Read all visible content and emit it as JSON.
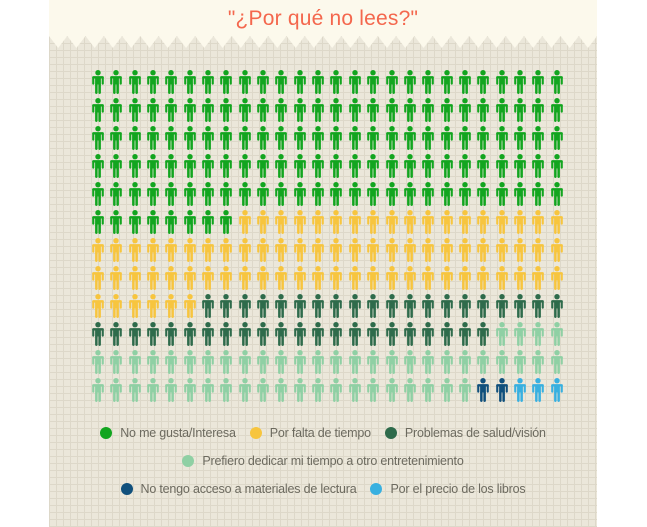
{
  "title": "\"¿Por qué no lees?\"",
  "colors": {
    "title": "#f4674d",
    "header_bg": "#fcf9ec",
    "paper_bg": "#ebe7da",
    "paper_line": "#ddd8c9",
    "legend_text": "#6c6a5f"
  },
  "chart_data": {
    "type": "pictograph",
    "icon": "person",
    "title": "\"¿Por qué no lees?\"",
    "grid": {
      "rows": 12,
      "columns": 26,
      "total_icons": 312,
      "fill_order": "row-major-sequential"
    },
    "legend_position": "bottom",
    "categories": [
      {
        "label": "No me gusta/Interesa",
        "color": "#12a51f",
        "count": 138
      },
      {
        "label": "Por falta de tiempo",
        "color": "#f7c53e",
        "count": 76
      },
      {
        "label": "Problemas de salud/visión",
        "color": "#2e6b4b",
        "count": 42
      },
      {
        "label": "Prefiero dedicar mi tiempo a otro entretenimiento",
        "color": "#8fd0a4",
        "count": 51
      },
      {
        "label": "No tengo acceso a materiales de lectura",
        "color": "#10507c",
        "count": 2
      },
      {
        "label": "Por el precio de los libros",
        "color": "#38b0e0",
        "count": 3
      }
    ],
    "legend_rows": [
      [
        0,
        1,
        2
      ],
      [
        3
      ],
      [
        4,
        5
      ]
    ]
  }
}
